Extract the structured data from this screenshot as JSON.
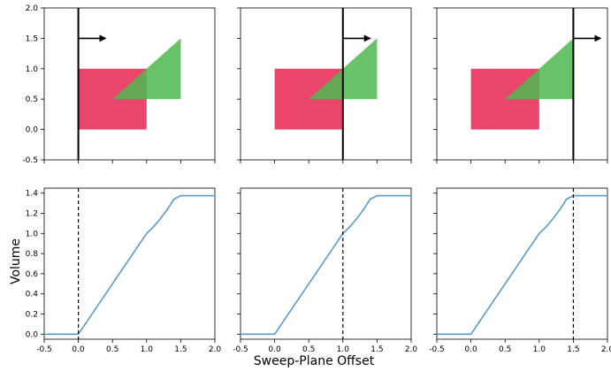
{
  "figure": {
    "xlabel": "Sweep-Plane Offset",
    "ylabel": "Volume"
  },
  "chart_data": [
    {
      "type": "scatter",
      "panel": "top-left",
      "xlim": [
        -0.5,
        2.0
      ],
      "ylim": [
        -0.5,
        2.0
      ],
      "xticks": [],
      "yticks": [
        "-0.5",
        "0.0",
        "0.5",
        "1.0",
        "1.5",
        "2.0"
      ],
      "grid": false,
      "shapes": [
        {
          "kind": "rectangle",
          "color": "#e8365e",
          "x": [
            0,
            1
          ],
          "y": [
            0,
            1
          ]
        },
        {
          "kind": "triangle",
          "color": "#4db84e",
          "points": [
            [
              0.5,
              0.5
            ],
            [
              1.5,
              0.5
            ],
            [
              1.5,
              1.5
            ]
          ]
        }
      ],
      "sweep_plane_x": 0.0,
      "arrow": {
        "x_start": 0.0,
        "x_end": 0.4,
        "y": 1.5
      }
    },
    {
      "type": "scatter",
      "panel": "top-middle",
      "xlim": [
        -0.5,
        2.0
      ],
      "ylim": [
        -0.5,
        2.0
      ],
      "xticks": [],
      "yticks": [],
      "grid": false,
      "shapes": [
        {
          "kind": "rectangle",
          "color": "#e8365e",
          "x": [
            0,
            1
          ],
          "y": [
            0,
            1
          ]
        },
        {
          "kind": "triangle",
          "color": "#4db84e",
          "points": [
            [
              0.5,
              0.5
            ],
            [
              1.5,
              0.5
            ],
            [
              1.5,
              1.5
            ]
          ]
        }
      ],
      "sweep_plane_x": 1.0,
      "arrow": {
        "x_start": 1.0,
        "x_end": 1.4,
        "y": 1.5
      }
    },
    {
      "type": "scatter",
      "panel": "top-right",
      "xlim": [
        -0.5,
        2.0
      ],
      "ylim": [
        -0.5,
        2.0
      ],
      "xticks": [],
      "yticks": [],
      "grid": false,
      "shapes": [
        {
          "kind": "rectangle",
          "color": "#e8365e",
          "x": [
            0,
            1
          ],
          "y": [
            0,
            1
          ]
        },
        {
          "kind": "triangle",
          "color": "#4db84e",
          "points": [
            [
              0.5,
              0.5
            ],
            [
              1.5,
              0.5
            ],
            [
              1.5,
              1.5
            ]
          ]
        }
      ],
      "sweep_plane_x": 1.5,
      "arrow": {
        "x_start": 1.5,
        "x_end": 1.9,
        "y": 1.5
      }
    },
    {
      "type": "line",
      "panel": "bottom-left",
      "xlim": [
        -0.5,
        2.0
      ],
      "ylim": [
        -0.05,
        1.45
      ],
      "xticks": [
        "-0.5",
        "0.0",
        "0.5",
        "1.0",
        "1.5",
        "2.0"
      ],
      "yticks": [
        "0.0",
        "0.2",
        "0.4",
        "0.6",
        "0.8",
        "1.0",
        "1.2",
        "1.4"
      ],
      "grid": false,
      "color": "#5a9ac8",
      "x": [
        -0.5,
        -0.25,
        0.0,
        0.25,
        0.5,
        0.75,
        1.0,
        1.1,
        1.2,
        1.3,
        1.4,
        1.5,
        1.75,
        2.0
      ],
      "y": [
        0.0,
        0.0,
        0.0,
        0.25,
        0.5,
        0.75,
        1.0,
        1.065,
        1.145,
        1.235,
        1.34,
        1.375,
        1.375,
        1.375
      ],
      "marker_x": 0.0
    },
    {
      "type": "line",
      "panel": "bottom-middle",
      "xlim": [
        -0.5,
        2.0
      ],
      "ylim": [
        -0.05,
        1.45
      ],
      "xticks": [
        "-0.5",
        "0.0",
        "0.5",
        "1.0",
        "1.5",
        "2.0"
      ],
      "yticks": [],
      "grid": false,
      "color": "#5a9ac8",
      "x": [
        -0.5,
        -0.25,
        0.0,
        0.25,
        0.5,
        0.75,
        1.0,
        1.1,
        1.2,
        1.3,
        1.4,
        1.5,
        1.75,
        2.0
      ],
      "y": [
        0.0,
        0.0,
        0.0,
        0.25,
        0.5,
        0.75,
        1.0,
        1.065,
        1.145,
        1.235,
        1.34,
        1.375,
        1.375,
        1.375
      ],
      "marker_x": 1.0
    },
    {
      "type": "line",
      "panel": "bottom-right",
      "xlim": [
        -0.5,
        2.0
      ],
      "ylim": [
        -0.05,
        1.45
      ],
      "xticks": [
        "-0.5",
        "0.0",
        "0.5",
        "1.0",
        "1.5",
        "2.0"
      ],
      "yticks": [],
      "grid": false,
      "color": "#5a9ac8",
      "x": [
        -0.5,
        -0.25,
        0.0,
        0.25,
        0.5,
        0.75,
        1.0,
        1.1,
        1.2,
        1.3,
        1.4,
        1.5,
        1.75,
        2.0
      ],
      "y": [
        0.0,
        0.0,
        0.0,
        0.25,
        0.5,
        0.75,
        1.0,
        1.065,
        1.145,
        1.235,
        1.34,
        1.375,
        1.375,
        1.375
      ],
      "marker_x": 1.5
    }
  ]
}
